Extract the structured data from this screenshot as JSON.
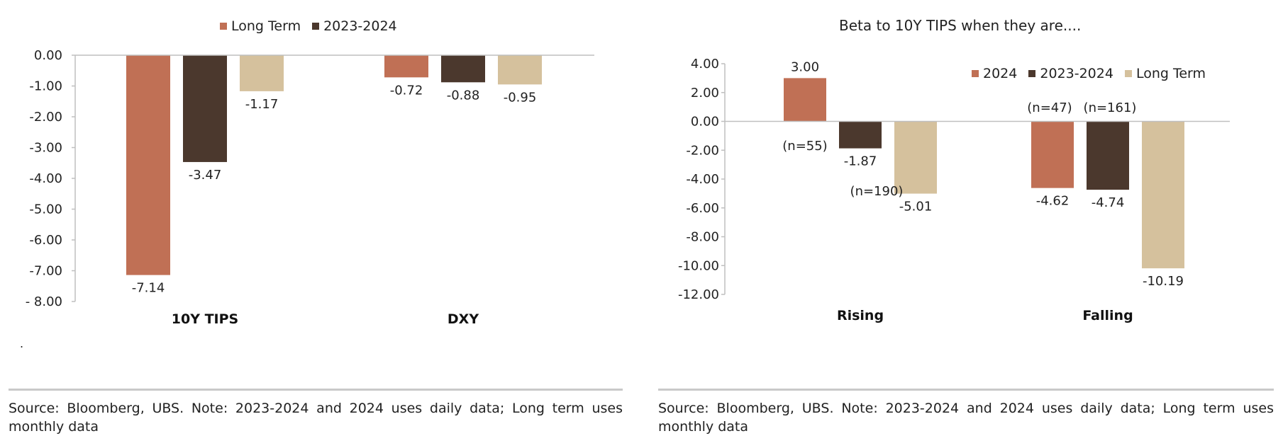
{
  "colors": {
    "2024": "#c07055",
    "2023-2024": "#4b382d",
    "Long Term": "#d5c19d",
    "axis": "#bfbfbf"
  },
  "left": {
    "legend": [
      {
        "label": "Long Term",
        "color": "#c07055"
      },
      {
        "label": "2023-2024",
        "color": "#4b382d"
      }
    ],
    "stray_mark": ".",
    "source": "Source: Bloomberg, UBS. Note: 2023-2024 and 2024 uses daily data; Long term uses monthly data"
  },
  "right": {
    "title": "Beta to 10Y TIPS when they are....",
    "legend": [
      {
        "label": "2024",
        "color": "#c07055"
      },
      {
        "label": "2023-2024",
        "color": "#4b382d"
      },
      {
        "label": "Long Term",
        "color": "#d5c19d"
      }
    ],
    "source": "Source: Bloomberg, UBS. Note: 2023-2024 and 2024 uses daily data; Long term uses monthly data"
  },
  "chart_data": [
    {
      "type": "bar",
      "title": "",
      "categories": [
        "10Y TIPS",
        "DXY"
      ],
      "series": [
        {
          "name": "Long Term",
          "color": "#c07055",
          "values": [
            -7.14,
            -0.72
          ]
        },
        {
          "name": "2023-2024",
          "color": "#4b382d",
          "values": [
            -3.47,
            -0.88
          ]
        },
        {
          "name": "",
          "color": "#d5c19d",
          "values": [
            -1.17,
            -0.95
          ]
        }
      ],
      "data_labels": [
        [
          "-7.14",
          "-0.72"
        ],
        [
          "-3.47",
          "-0.88"
        ],
        [
          "-1.17",
          "-0.95"
        ]
      ],
      "ylim": [
        -8,
        0
      ],
      "yticks": [
        0,
        -1,
        -2,
        -3,
        -4,
        -5,
        -6,
        -7,
        -8
      ],
      "ytick_labels": [
        "0.00",
        "-1.00",
        "-2.00",
        "-3.00",
        "-4.00",
        "-5.00",
        "-6.00",
        "-7.00",
        "- 8.00"
      ],
      "legend_position": "top",
      "grid": false
    },
    {
      "type": "bar",
      "title": "Beta to 10Y TIPS when they are....",
      "categories": [
        "Rising",
        "Falling"
      ],
      "series": [
        {
          "name": "2024",
          "color": "#c07055",
          "values": [
            3.0,
            -4.62
          ]
        },
        {
          "name": "2023-2024",
          "color": "#4b382d",
          "values": [
            -1.87,
            -4.74
          ]
        },
        {
          "name": "Long Term",
          "color": "#d5c19d",
          "values": [
            -5.01,
            -10.19
          ]
        }
      ],
      "data_labels": [
        [
          "3.00",
          "-4.62"
        ],
        [
          "-1.87",
          "-4.74"
        ],
        [
          "-5.01",
          "-10.19"
        ]
      ],
      "annotations": [
        "(n=55)",
        "(n=190)",
        "(n=47)",
        "(n=161)"
      ],
      "ylim": [
        -12,
        4
      ],
      "yticks": [
        4,
        2,
        0,
        -2,
        -4,
        -6,
        -8,
        -10,
        -12
      ],
      "ytick_labels": [
        "4.00",
        "2.00",
        "0.00",
        "-2.00",
        "-4.00",
        "-6.00",
        "-8.00",
        "-10.00",
        "-12.00"
      ],
      "legend_position": "top-right",
      "grid": false
    }
  ]
}
